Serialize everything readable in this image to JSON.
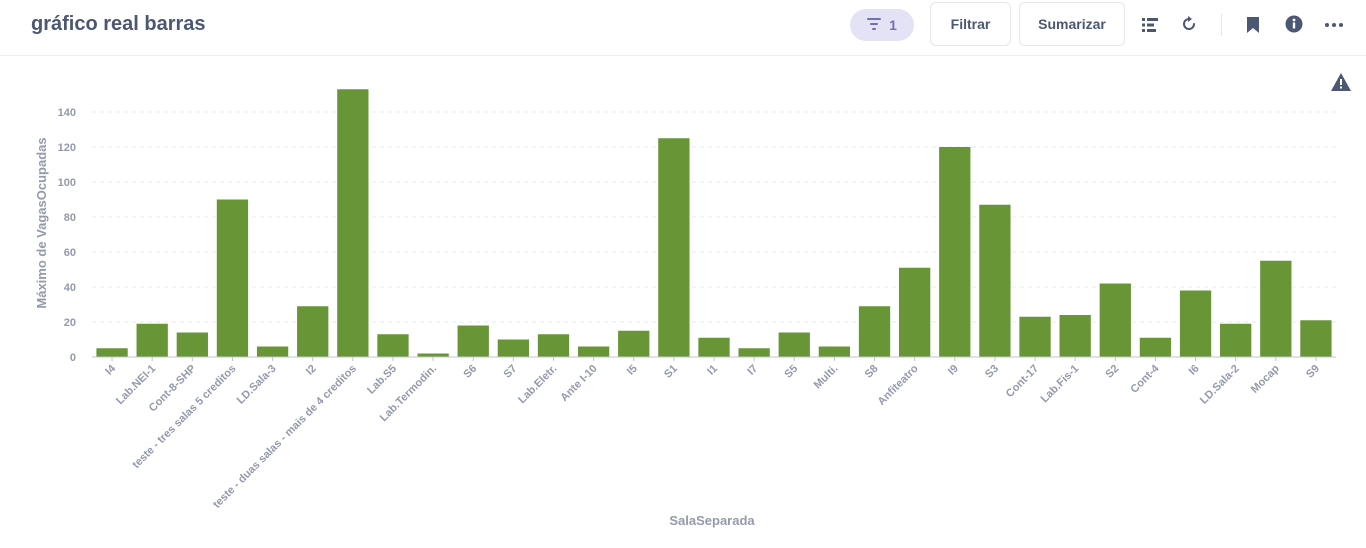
{
  "header": {
    "title": "gráfico real barras",
    "filter_count": "1",
    "filter_button_label": "Filtrar",
    "summarize_button_label": "Sumarizar"
  },
  "colors": {
    "bar": "#689636",
    "axis_text": "#949aab",
    "filter_pill_bg": "#e3e3f5",
    "filter_pill_text": "#7172ad",
    "title_text": "#4c5773"
  },
  "icons": [
    "filter-icon",
    "editor-icon",
    "refresh-icon",
    "bookmark-icon",
    "info-icon",
    "more-icon",
    "warning-icon"
  ],
  "chart_data": {
    "type": "bar",
    "xlabel": "SalaSeparada",
    "ylabel": "Máximo de VagasOcupadas",
    "ylim": [
      0,
      150
    ],
    "yticks": [
      0,
      20,
      40,
      60,
      80,
      100,
      120,
      140
    ],
    "grid": true,
    "categories": [
      "I4",
      "Lab.NEI-1",
      "Cont-8-SHP",
      "teste - tres salas 5 creditos",
      "LD.Sala-3",
      "I2",
      "teste - duas salas - mais de 4 creditos",
      "Lab.S5",
      "Lab.Termodin.",
      "S6",
      "S7",
      "Lab.Eletr.",
      "Ante I-10",
      "I5",
      "S1",
      "I1",
      "I7",
      "S5",
      "Multi.",
      "S8",
      "Anfiteatro",
      "I9",
      "S3",
      "Cont-17",
      "Lab.Fis-1",
      "S2",
      "Cont-4",
      "I6",
      "LD.Sala-2",
      "Mocap",
      "S9"
    ],
    "values": [
      5,
      19,
      14,
      90,
      6,
      29,
      153,
      13,
      2,
      18,
      10,
      13,
      6,
      15,
      125,
      11,
      5,
      14,
      6,
      29,
      51,
      120,
      87,
      23,
      24,
      42,
      11,
      38,
      19,
      55,
      21
    ]
  }
}
